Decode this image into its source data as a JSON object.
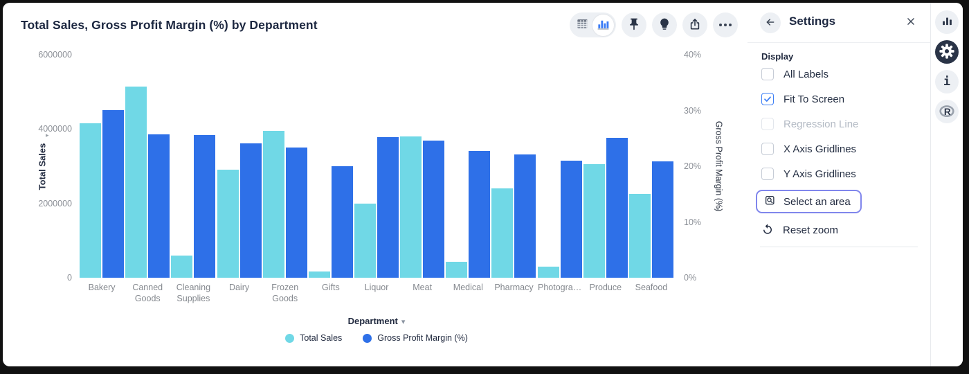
{
  "header": {
    "title": "Total Sales, Gross Profit Margin (%) by Department"
  },
  "toolbar": {
    "view_toggle": {
      "selected": "chart-view",
      "options": [
        "table-view",
        "chart-view"
      ]
    },
    "buttons": [
      "pin",
      "insights",
      "share",
      "more"
    ]
  },
  "chart_data": {
    "type": "bar",
    "categories": [
      "Bakery",
      "Canned Goods",
      "Cleaning Supplies",
      "Dairy",
      "Frozen Goods",
      "Gifts",
      "Liquor",
      "Meat",
      "Medical",
      "Pharmacy",
      "Photogra…",
      "Produce",
      "Seafood"
    ],
    "series": [
      {
        "name": "Total Sales",
        "axis": "left",
        "color": "#70D8E6",
        "values": [
          4150000,
          5150000,
          600000,
          2900000,
          3950000,
          160000,
          2000000,
          3800000,
          420000,
          2400000,
          300000,
          3050000,
          2250000
        ]
      },
      {
        "name": "Gross Profit Margin (%)",
        "axis": "right",
        "color": "#2E70E8",
        "values": [
          30.0,
          25.7,
          25.6,
          24.1,
          23.4,
          20.0,
          25.2,
          24.6,
          22.7,
          22.1,
          21.0,
          25.1,
          20.9
        ]
      }
    ],
    "left_axis": {
      "title": "Total Sales",
      "max": 6000000,
      "ticks": [
        {
          "label": "0",
          "value": 0
        },
        {
          "label": "2000000",
          "value": 2000000
        },
        {
          "label": "4000000",
          "value": 4000000
        },
        {
          "label": "6000000",
          "value": 6000000
        }
      ]
    },
    "right_axis": {
      "title": "Gross Profit Margin (%)",
      "max": 40,
      "ticks": [
        {
          "label": "0%",
          "value": 0
        },
        {
          "label": "10%",
          "value": 10
        },
        {
          "label": "20%",
          "value": 20
        },
        {
          "label": "30%",
          "value": 30
        },
        {
          "label": "40%",
          "value": 40
        }
      ]
    },
    "xlabel": "Department",
    "legend_position": "bottom",
    "grid": false
  },
  "settings": {
    "title": "Settings",
    "section_title": "Display",
    "checkboxes": [
      {
        "label": "All Labels",
        "checked": false,
        "disabled": false
      },
      {
        "label": "Fit To Screen",
        "checked": true,
        "disabled": false
      },
      {
        "label": "Regression Line",
        "checked": false,
        "disabled": true
      },
      {
        "label": "X Axis Gridlines",
        "checked": false,
        "disabled": false
      },
      {
        "label": "Y Axis Gridlines",
        "checked": false,
        "disabled": false
      }
    ],
    "actions": [
      {
        "label": "Select an area",
        "highlighted": true
      },
      {
        "label": "Reset zoom",
        "highlighted": false
      }
    ]
  },
  "rail": {
    "items": [
      {
        "icon": "bar-chart-icon",
        "active": false
      },
      {
        "icon": "gear-icon",
        "active": true
      },
      {
        "icon": "info-icon",
        "active": false
      },
      {
        "icon": "r-logo-icon",
        "active": false
      }
    ]
  },
  "colors": {
    "teal": "#70D8E6",
    "blue": "#2E70E8",
    "accent_blue": "#3D7FF5",
    "select_outline": "#8086EC",
    "icon_dark": "#2A3447"
  }
}
